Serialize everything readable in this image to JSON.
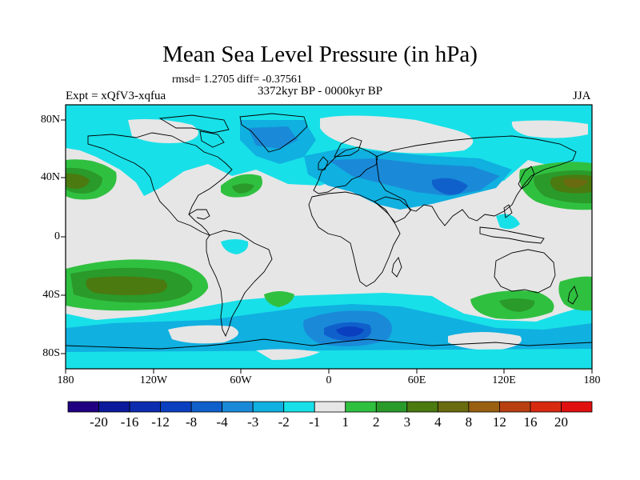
{
  "title": "Mean Sea Level Pressure (in hPa)",
  "stats_text": "rmsd= 1.2705 diff= -0.37561",
  "experiment_label": "Expt = xQfV3-xqfua",
  "period_label": "3372kyr BP - 0000kyr BP",
  "season_label": "JJA",
  "lat_labels": [
    "80N",
    "40N",
    "0",
    "40S",
    "80S"
  ],
  "lon_labels": [
    "180",
    "120W",
    "60W",
    "0",
    "60E",
    "120E",
    "180"
  ],
  "colorbar": {
    "labels": [
      "-20",
      "-16",
      "-12",
      "-8",
      "-4",
      "-3",
      "-2",
      "-1",
      "1",
      "2",
      "3",
      "4",
      "8",
      "12",
      "16",
      "20"
    ],
    "colors": [
      "#200080",
      "#0a1a9a",
      "#0c2cb0",
      "#0a40c0",
      "#1060cc",
      "#1a8ad8",
      "#10b0e0",
      "#18e0e8",
      "#e6e6e6",
      "#30c040",
      "#2a9a2a",
      "#4a7a10",
      "#6a6a10",
      "#986010",
      "#b84010",
      "#d82a10",
      "#e01010"
    ]
  },
  "map_colors": {
    "background": "#e6e6e6",
    "minus1_to_minus2": "#18e0e8",
    "minus2_to_minus3": "#10b0e0",
    "minus3_to_minus4": "#1a8ad8",
    "minus4_to_minus8": "#1060cc",
    "below_minus8": "#0a40c0",
    "plus1_to_plus2": "#30c040",
    "plus2_to_plus3": "#2a9a2a",
    "plus3_to_plus4": "#4a7a10",
    "plus4_to_plus8": "#6a6a10",
    "plus8_to_plus12": "#986010"
  }
}
